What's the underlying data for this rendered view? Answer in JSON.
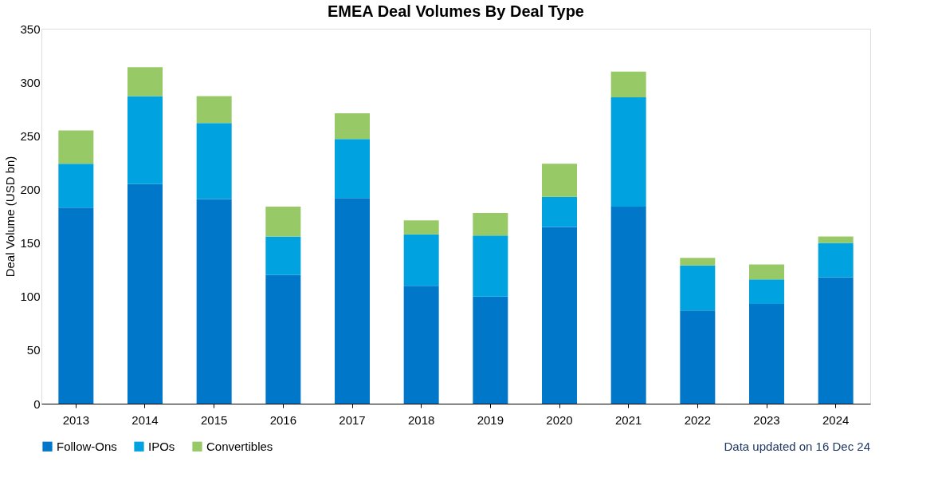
{
  "chart_data": {
    "type": "bar",
    "title": "EMEA Deal Volumes By Deal Type",
    "ylabel": "Deal Volume (USD bn)",
    "categories": [
      "2013",
      "2014",
      "2015",
      "2016",
      "2017",
      "2018",
      "2019",
      "2020",
      "2021",
      "2022",
      "2023",
      "2024"
    ],
    "series": [
      {
        "name": "Follow-Ons",
        "color": "#0077c8",
        "values": [
          183,
          205,
          191,
          120,
          192,
          110,
          100,
          165,
          184,
          87,
          93,
          118
        ]
      },
      {
        "name": "IPOs",
        "color": "#00a3e0",
        "values": [
          41,
          82,
          71,
          36,
          55,
          48,
          57,
          28,
          102,
          42,
          23,
          32
        ]
      },
      {
        "name": "Convertibles",
        "color": "#97c966",
        "values": [
          31,
          27,
          25,
          28,
          24,
          13,
          21,
          31,
          24,
          7,
          14,
          6
        ]
      }
    ],
    "stacked": true,
    "ylim": [
      0,
      350
    ],
    "yticks": [
      0,
      50,
      100,
      150,
      200,
      250,
      300,
      350
    ],
    "grid": false,
    "legend": "bottom",
    "annotations": [
      "Data updated on 16 Dec 24"
    ]
  }
}
